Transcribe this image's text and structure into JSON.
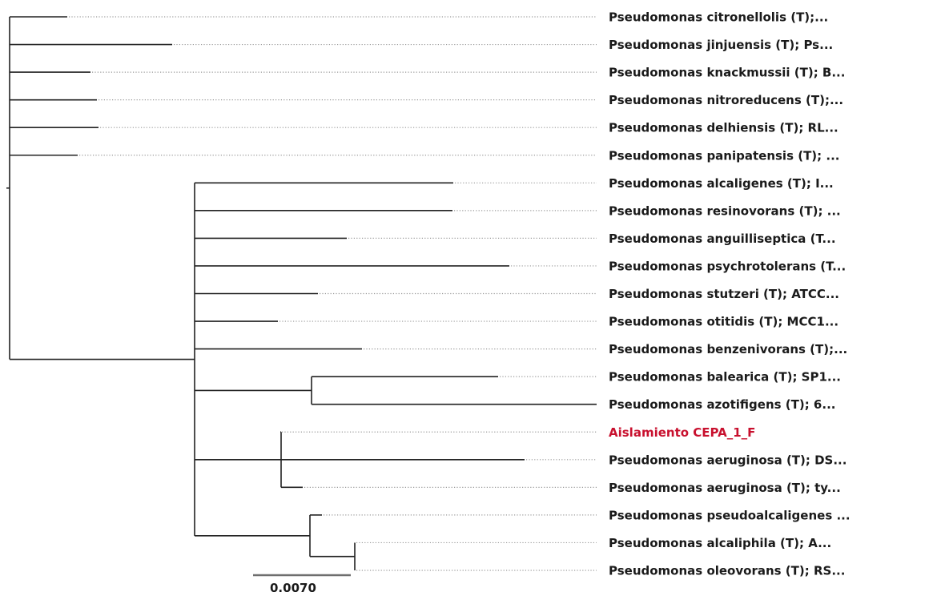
{
  "tree": {
    "colors": {
      "branch": "#222222",
      "leader": "#9a9a9a",
      "label": "#1a1a1a",
      "highlight": "#c8102e"
    },
    "leaves": [
      {
        "id": "citronellolis",
        "label": "Pseudomonas citronellolis (T);...",
        "highlight": false
      },
      {
        "id": "jinjuensis",
        "label": "Pseudomonas jinjuensis (T); Ps...",
        "highlight": false
      },
      {
        "id": "knackmussii",
        "label": "Pseudomonas knackmussii (T); B...",
        "highlight": false
      },
      {
        "id": "nitroreducens",
        "label": "Pseudomonas nitroreducens (T);...",
        "highlight": false
      },
      {
        "id": "delhiensis",
        "label": "Pseudomonas delhiensis (T); RL...",
        "highlight": false
      },
      {
        "id": "panipatensis",
        "label": "Pseudomonas panipatensis (T); ...",
        "highlight": false
      },
      {
        "id": "alcaligenes",
        "label": "Pseudomonas alcaligenes (T); I...",
        "highlight": false
      },
      {
        "id": "resinovorans",
        "label": "Pseudomonas resinovorans (T); ...",
        "highlight": false
      },
      {
        "id": "anguilliseptica",
        "label": "Pseudomonas anguilliseptica (T...",
        "highlight": false
      },
      {
        "id": "psychrotolerans",
        "label": "Pseudomonas psychrotolerans (T...",
        "highlight": false
      },
      {
        "id": "stutzeri",
        "label": "Pseudomonas stutzeri (T); ATCC...",
        "highlight": false
      },
      {
        "id": "otitidis",
        "label": "Pseudomonas otitidis (T); MCC1...",
        "highlight": false
      },
      {
        "id": "benzenivorans",
        "label": "Pseudomonas benzenivorans (T);...",
        "highlight": false
      },
      {
        "id": "balearica",
        "label": "Pseudomonas balearica (T); SP1...",
        "highlight": false
      },
      {
        "id": "azotifigens",
        "label": "Pseudomonas azotifigens (T); 6...",
        "highlight": false
      },
      {
        "id": "cepa1f",
        "label": "Aislamiento CEPA_1_F",
        "highlight": true
      },
      {
        "id": "aeruginosa-ds",
        "label": "Pseudomonas aeruginosa (T); DS...",
        "highlight": false
      },
      {
        "id": "aeruginosa-ty",
        "label": "Pseudomonas aeruginosa (T); ty...",
        "highlight": false
      },
      {
        "id": "pseudoalcaligenes",
        "label": "Pseudomonas pseudoalcaligenes ...",
        "highlight": false
      },
      {
        "id": "alcaliphila",
        "label": "Pseudomonas alcaliphila (T); A...",
        "highlight": false
      },
      {
        "id": "oleovorans",
        "label": "Pseudomonas oleovorans (T); RS...",
        "highlight": false
      }
    ],
    "scale_bar": {
      "label": "0.0070",
      "value": 0.007
    }
  }
}
